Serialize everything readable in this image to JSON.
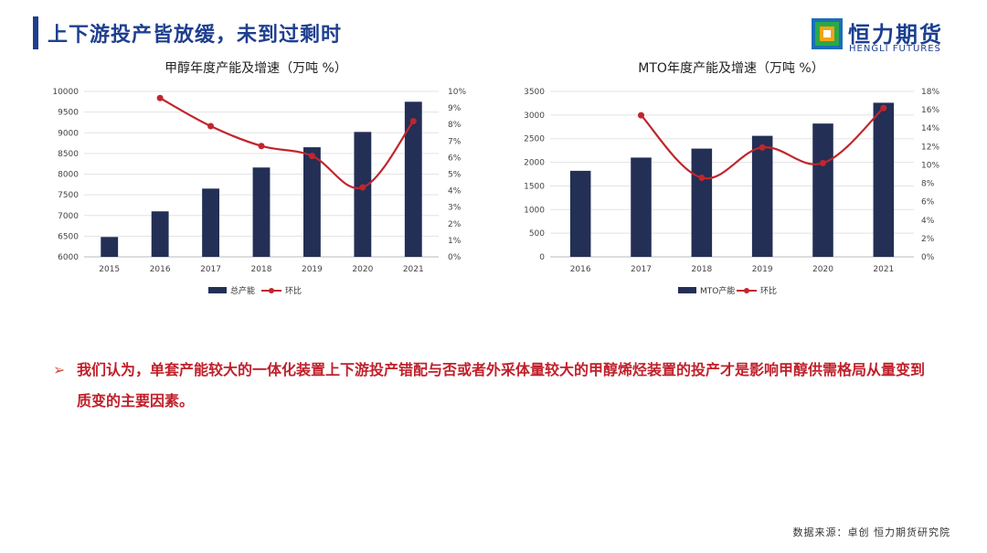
{
  "header": {
    "title": "上下游投产皆放缓，未到过剩时",
    "logo_cn": "恒力期货",
    "logo_en": "HENGLI FUTURES"
  },
  "chart_data": [
    {
      "type": "bar",
      "title": "甲醇年度产能及增速（万吨 %）",
      "categories": [
        "2015",
        "2016",
        "2017",
        "2018",
        "2019",
        "2020",
        "2021"
      ],
      "series": [
        {
          "name": "总产能",
          "kind": "bar",
          "axis": "left",
          "color": "#232f55",
          "values": [
            6480,
            7100,
            7650,
            8160,
            8650,
            9020,
            9750
          ]
        },
        {
          "name": "环比",
          "kind": "line",
          "axis": "right",
          "color": "#c0262d",
          "values": [
            null,
            9.6,
            7.9,
            6.7,
            6.1,
            4.2,
            8.2
          ]
        }
      ],
      "ylim_left": [
        6000,
        10000
      ],
      "yticks_left": [
        "6000",
        "6500",
        "7000",
        "7500",
        "8000",
        "8500",
        "9000",
        "9500",
        "10000"
      ],
      "ylim_right": [
        0,
        10
      ],
      "yticks_right": [
        "0%",
        "1%",
        "2%",
        "3%",
        "4%",
        "5%",
        "6%",
        "7%",
        "8%",
        "9%",
        "10%"
      ],
      "legend_position": "bottom"
    },
    {
      "type": "bar",
      "title": "MTO年度产能及增速（万吨 %）",
      "categories": [
        "2016",
        "2017",
        "2018",
        "2019",
        "2020",
        "2021"
      ],
      "series": [
        {
          "name": "MTO产能",
          "kind": "bar",
          "axis": "left",
          "color": "#232f55",
          "values": [
            1820,
            2100,
            2290,
            2560,
            2820,
            3260
          ]
        },
        {
          "name": "环比",
          "kind": "line",
          "axis": "right",
          "color": "#c0262d",
          "values": [
            null,
            15.4,
            8.6,
            11.9,
            10.2,
            16.2
          ]
        }
      ],
      "ylim_left": [
        0,
        3500
      ],
      "yticks_left": [
        "0",
        "500",
        "1000",
        "1500",
        "2000",
        "2500",
        "3000",
        "3500"
      ],
      "ylim_right": [
        0,
        18
      ],
      "yticks_right": [
        "0%",
        "2%",
        "4%",
        "6%",
        "8%",
        "10%",
        "12%",
        "14%",
        "16%",
        "18%"
      ],
      "legend_position": "bottom"
    }
  ],
  "bullet": {
    "arrow": "➢",
    "text": "我们认为，单套产能较大的一体化装置上下游投产错配与否或者外采体量较大的甲醇烯烃装置的投产才是影响甲醇供需格局从量变到质变的主要因素。"
  },
  "footer": {
    "source": "数据来源：卓创  恒力期货研究院"
  }
}
